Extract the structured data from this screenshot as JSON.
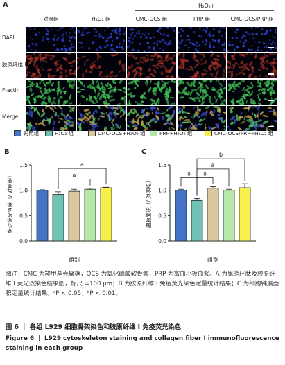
{
  "panel_a": {
    "letter": "A",
    "treatment_header": "H₂O₂+",
    "columns": [
      "对照组",
      "H₂O₂ 组",
      "CMC-OCS 组",
      "PRP 组",
      "CMC-OCS/PRP 组"
    ],
    "rows": [
      "DAPI",
      "胶原纤维 I",
      "F-actin",
      "Merge"
    ],
    "row_colors": [
      "#2b3fc6",
      "#c43a2c",
      "#3fbf54",
      "#3f9ba0"
    ]
  },
  "legend": {
    "items": [
      {
        "label": "对照组",
        "color": "#4472c4"
      },
      {
        "label": "H₂O₂ 组",
        "color": "#70c2b4"
      },
      {
        "label": "CMC-OCS+H₂O₂ 组",
        "color": "#dcc8a0"
      },
      {
        "label": "PRP+H₂O₂ 组",
        "color": "#b6e8a8"
      },
      {
        "label": "CMC-OCS/PRP+H₂O₂ 组",
        "color": "#f7f04a"
      }
    ]
  },
  "chart_data": [
    {
      "type": "bar",
      "panel": "B",
      "ylabel": "相对荧光强度（/ 对照组）",
      "xlabel": "组别",
      "ylim": [
        0,
        1.5
      ],
      "yticks": [
        "0.0",
        "0.5",
        "1.0",
        "1.5"
      ],
      "values": [
        1.0,
        0.92,
        0.98,
        1.02,
        1.05
      ],
      "errors": [
        0.01,
        0.05,
        0.04,
        0.02,
        0.01
      ],
      "colors": [
        "#4472c4",
        "#70c2b4",
        "#dcc8a0",
        "#b6e8a8",
        "#f7f04a"
      ],
      "significance": [
        {
          "from": 1,
          "to": 3,
          "label": "a"
        },
        {
          "from": 1,
          "to": 4,
          "label": "a"
        }
      ]
    },
    {
      "type": "bar",
      "panel": "C",
      "ylabel": "细胞面积（/ 对照组）",
      "xlabel": "组别",
      "ylim": [
        0,
        1.5
      ],
      "yticks": [
        "0.0",
        "0.5",
        "1.0",
        "1.5"
      ],
      "values": [
        1.0,
        0.8,
        1.04,
        1.0,
        1.05
      ],
      "errors": [
        0.02,
        0.04,
        0.03,
        0.02,
        0.08
      ],
      "colors": [
        "#4472c4",
        "#70c2b4",
        "#dcc8a0",
        "#b6e8a8",
        "#f7f04a"
      ],
      "significance": [
        {
          "from": 0,
          "to": 1,
          "label": "a"
        },
        {
          "from": 1,
          "to": 2,
          "label": "a"
        },
        {
          "from": 1,
          "to": 3,
          "label": "a"
        },
        {
          "from": 1,
          "to": 4,
          "label": "b"
        }
      ]
    }
  ],
  "caption": "图注：CMC 为羧甲基壳聚糖，OCS 为氧化硫酸软骨素，PRP 为富血小板血浆。A 为鬼笔环肽及胶原纤维 I 荧光双染色结果图，标尺 =100 μm；B 为胶原纤维 I 免疫荧光染色定量统计结果；C 为细胞铺展面积定量统计结果。ᵃP < 0.05，ᵇP < 0.01。",
  "figure_title": "图 6 ｜ 各组 L929 细胞骨架染色和胶原纤维 I 免疫荧光染色",
  "figure_title_en": "Figure 6 ｜ L929 cytoskeleton staining and collagen fiber I immunofluorescence staining in each group"
}
